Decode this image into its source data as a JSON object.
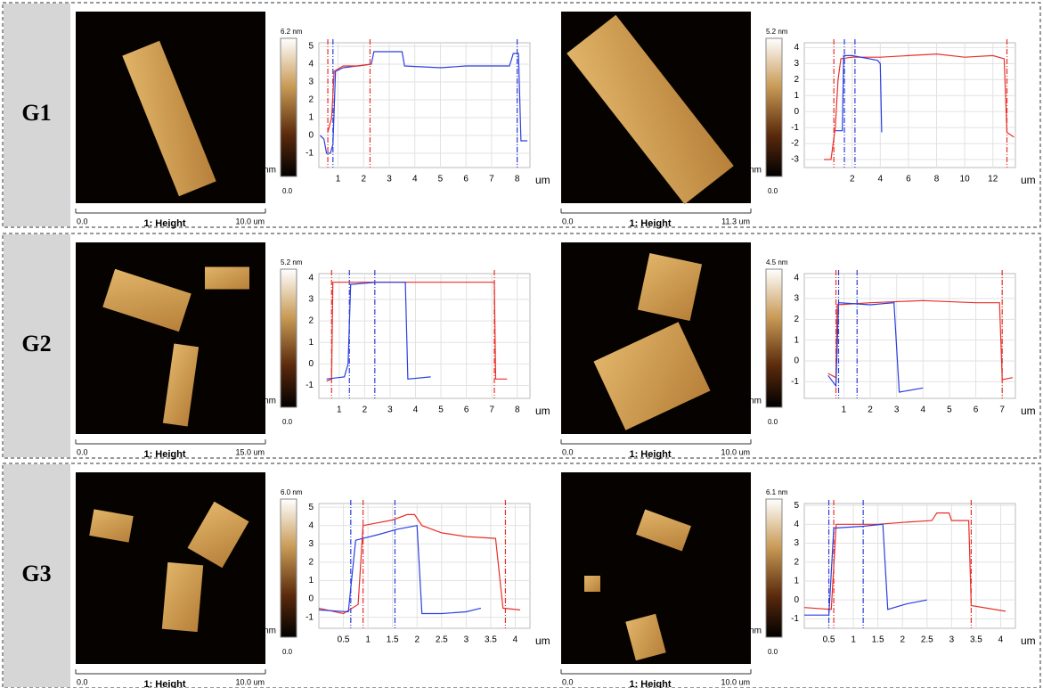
{
  "rows": [
    {
      "label": "G1",
      "panels": [
        {
          "image": {
            "scale_start": "0.0",
            "scale_label": "1: Height",
            "scale_end": "10.0 um"
          },
          "colorbar": {
            "max_label": "6.2 nm",
            "unit": "nm",
            "min_label": "0.0"
          },
          "chart": {
            "type": "line",
            "x_label": "um",
            "xlim": [
              0.25,
              8.5
            ],
            "ylim": [
              -1.8,
              5.2
            ],
            "xticks": [
              1,
              2,
              3,
              4,
              5,
              6,
              7,
              8
            ],
            "yticks": [
              -1,
              0,
              1,
              2,
              3,
              4,
              5
            ],
            "grid": true,
            "series": [
              {
                "color": "#2b3fe0",
                "x": [
                  0.3,
                  0.45,
                  0.55,
                  0.7,
                  0.8,
                  0.9,
                  1.2,
                  2.3,
                  2.4,
                  3.5,
                  3.6,
                  5,
                  6,
                  7.7,
                  7.85,
                  8.05,
                  8.15,
                  8.4
                ],
                "values": [
                  0,
                  -0.2,
                  -1.0,
                  -1.0,
                  -0.5,
                  3.6,
                  3.8,
                  4.0,
                  4.7,
                  4.7,
                  3.9,
                  3.8,
                  3.9,
                  3.9,
                  4.6,
                  4.6,
                  -0.3,
                  -0.3
                ]
              },
              {
                "color": "#e8302a",
                "x": [
                  0.6,
                  0.75,
                  0.85,
                  1.2,
                  1.8,
                  2.3
                ],
                "values": [
                  0.2,
                  1.0,
                  3.6,
                  3.9,
                  3.9,
                  4.0
                ]
              }
            ],
            "cursors": [
              {
                "color": "#e8302a",
                "x": [
                  0.6,
                  2.25
                ]
              },
              {
                "color": "#2b3fe0",
                "x": [
                  0.8,
                  8.0
                ]
              }
            ]
          }
        },
        {
          "image": {
            "scale_start": "0.0",
            "scale_label": "1: Height",
            "scale_end": "11.3 um"
          },
          "colorbar": {
            "max_label": "5.2 nm",
            "unit": "nm",
            "min_label": "0.0"
          },
          "chart": {
            "type": "line",
            "x_label": "um",
            "xlim": [
              -1.4,
              13.6
            ],
            "ylim": [
              -3.5,
              4.3
            ],
            "xticks": [
              2,
              4,
              6,
              8,
              10,
              12
            ],
            "yticks": [
              -3,
              -2,
              -1,
              0,
              1,
              2,
              3,
              4
            ],
            "grid": true,
            "series": [
              {
                "color": "#e8302a",
                "x": [
                  0,
                  0.5,
                  0.8,
                  1,
                  1.2,
                  2,
                  4,
                  6,
                  8,
                  10,
                  12,
                  12.8,
                  13,
                  13.5
                ],
                "values": [
                  -3,
                  -3,
                  -1,
                  2,
                  3.3,
                  3.4,
                  3.4,
                  3.5,
                  3.6,
                  3.4,
                  3.5,
                  3.3,
                  -1.3,
                  -1.6
                ]
              },
              {
                "color": "#2b3fe0",
                "x": [
                  0.8,
                  1.3,
                  1.4,
                  2,
                  3.8,
                  4,
                  4.1
                ],
                "values": [
                  -1.2,
                  -1.2,
                  3.5,
                  3.5,
                  3.2,
                  3,
                  -1.3
                ]
              }
            ],
            "cursors": [
              {
                "color": "#e8302a",
                "x": [
                  0.7,
                  13.0
                ]
              },
              {
                "color": "#2b3fe0",
                "x": [
                  1.45,
                  2.2
                ]
              }
            ]
          }
        }
      ]
    },
    {
      "label": "G2",
      "panels": [
        {
          "image": {
            "scale_start": "0.0",
            "scale_label": "1: Height",
            "scale_end": "15.0 um"
          },
          "colorbar": {
            "max_label": "5.2 nm",
            "unit": "nm",
            "min_label": "0.0"
          },
          "chart": {
            "type": "line",
            "x_label": "um",
            "xlim": [
              0.2,
              8.5
            ],
            "ylim": [
              -1.6,
              4.2
            ],
            "xticks": [
              1,
              2,
              3,
              4,
              5,
              6,
              7,
              8
            ],
            "yticks": [
              -1,
              0,
              1,
              2,
              3,
              4
            ],
            "grid": true,
            "series": [
              {
                "color": "#e8302a",
                "x": [
                  0.5,
                  0.7,
                  0.75,
                  2,
                  4,
                  6,
                  7.1,
                  7.15,
                  7.6
                ],
                "values": [
                  -0.8,
                  -0.7,
                  3.8,
                  3.8,
                  3.8,
                  3.8,
                  3.8,
                  -0.7,
                  -0.7
                ]
              },
              {
                "color": "#2b3fe0",
                "x": [
                  0.5,
                  1.2,
                  1.35,
                  1.45,
                  2.5,
                  3.6,
                  3.7,
                  4.6
                ],
                "values": [
                  -0.7,
                  -0.6,
                  0,
                  3.7,
                  3.8,
                  3.8,
                  -0.7,
                  -0.6
                ]
              }
            ],
            "cursors": [
              {
                "color": "#e8302a",
                "x": [
                  0.7,
                  7.1
                ]
              },
              {
                "color": "#2b3fe0",
                "x": [
                  1.4,
                  2.4
                ]
              }
            ]
          }
        },
        {
          "image": {
            "scale_start": "0.0",
            "scale_label": "1: Height",
            "scale_end": "10.0 um"
          },
          "colorbar": {
            "max_label": "4.5 nm",
            "unit": "nm",
            "min_label": "0.0"
          },
          "chart": {
            "type": "line",
            "x_label": "um",
            "xlim": [
              -0.5,
              7.5
            ],
            "ylim": [
              -1.8,
              4.2
            ],
            "xticks": [
              1,
              2,
              3,
              4,
              5,
              6,
              7
            ],
            "yticks": [
              -1,
              0,
              1,
              2,
              3,
              4
            ],
            "grid": true,
            "series": [
              {
                "color": "#e8302a",
                "x": [
                  0.4,
                  0.7,
                  0.75,
                  2,
                  4,
                  6,
                  6.9,
                  7,
                  7.4
                ],
                "values": [
                  -0.6,
                  -0.8,
                  2.7,
                  2.8,
                  2.9,
                  2.8,
                  2.8,
                  -0.9,
                  -0.8
                ]
              },
              {
                "color": "#2b3fe0",
                "x": [
                  0.4,
                  0.7,
                  0.8,
                  2,
                  2.9,
                  3.1,
                  4
                ],
                "values": [
                  -0.7,
                  -1.2,
                  2.8,
                  2.7,
                  2.8,
                  -1.5,
                  -1.3
                ]
              }
            ],
            "cursors": [
              {
                "color": "#e8302a",
                "x": [
                  0.7,
                  7
                ]
              },
              {
                "color": "#2b3fe0",
                "x": [
                  0.8,
                  1.5
                ]
              }
            ]
          }
        }
      ]
    },
    {
      "label": "G3",
      "panels": [
        {
          "image": {
            "scale_start": "0.0",
            "scale_label": "1: Height",
            "scale_end": "10.0 um"
          },
          "colorbar": {
            "max_label": "6.0 nm",
            "unit": "nm",
            "min_label": "0.0"
          },
          "chart": {
            "type": "line",
            "x_label": "um",
            "xlim": [
              0,
              4.3
            ],
            "ylim": [
              -1.6,
              5.2
            ],
            "xticks": [
              0.5,
              1,
              1.5,
              2,
              2.5,
              3,
              3.5,
              4
            ],
            "yticks": [
              -1,
              0,
              1,
              2,
              3,
              4,
              5
            ],
            "grid": true,
            "series": [
              {
                "color": "#e8302a",
                "x": [
                  0,
                  0.5,
                  0.8,
                  0.9,
                  1.5,
                  1.8,
                  1.95,
                  2.1,
                  2.5,
                  3,
                  3.6,
                  3.75,
                  4.1
                ],
                "values": [
                  -0.5,
                  -0.8,
                  -0.3,
                  4.0,
                  4.3,
                  4.6,
                  4.6,
                  4.0,
                  3.6,
                  3.4,
                  3.3,
                  -0.5,
                  -0.6
                ]
              },
              {
                "color": "#2b3fe0",
                "x": [
                  0,
                  0.6,
                  0.75,
                  1.2,
                  1.6,
                  2,
                  2.1,
                  2.5,
                  3.0,
                  3.3
                ],
                "values": [
                  -0.6,
                  -0.7,
                  3.2,
                  3.5,
                  3.8,
                  4.0,
                  -0.8,
                  -0.8,
                  -0.7,
                  -0.5
                ]
              }
            ],
            "cursors": [
              {
                "color": "#e8302a",
                "x": [
                  0.9,
                  3.8
                ]
              },
              {
                "color": "#2b3fe0",
                "x": [
                  0.65,
                  1.55
                ]
              }
            ]
          }
        },
        {
          "image": {
            "scale_start": "0.0",
            "scale_label": "1: Height",
            "scale_end": "10.0 um"
          },
          "colorbar": {
            "max_label": "6.1 nm",
            "unit": "nm",
            "min_label": "0.0"
          },
          "chart": {
            "type": "line",
            "x_label": "um",
            "xlim": [
              0,
              4.3
            ],
            "ylim": [
              -1.5,
              5.1
            ],
            "xticks": [
              0.5,
              1,
              1.5,
              2,
              2.5,
              3,
              3.5,
              4
            ],
            "yticks": [
              -1,
              0,
              1,
              2,
              3,
              4,
              5
            ],
            "grid": true,
            "series": [
              {
                "color": "#e8302a",
                "x": [
                  0,
                  0.55,
                  0.65,
                  1.5,
                  2,
                  2.6,
                  2.7,
                  2.95,
                  3,
                  3.35,
                  3.4,
                  4.1
                ],
                "values": [
                  -0.4,
                  -0.5,
                  4.0,
                  4.0,
                  4.1,
                  4.2,
                  4.6,
                  4.6,
                  4.2,
                  4.2,
                  -0.3,
                  -0.6
                ]
              },
              {
                "color": "#2b3fe0",
                "x": [
                  0,
                  0.5,
                  0.6,
                  1.2,
                  1.6,
                  1.7,
                  2.1,
                  2.5
                ],
                "values": [
                  -0.8,
                  -0.8,
                  3.8,
                  3.9,
                  4.0,
                  -0.5,
                  -0.2,
                  0
                ]
              }
            ],
            "cursors": [
              {
                "color": "#e8302a",
                "x": [
                  0.6,
                  3.4
                ]
              },
              {
                "color": "#2b3fe0",
                "x": [
                  0.5,
                  1.2
                ]
              }
            ]
          }
        }
      ]
    }
  ]
}
